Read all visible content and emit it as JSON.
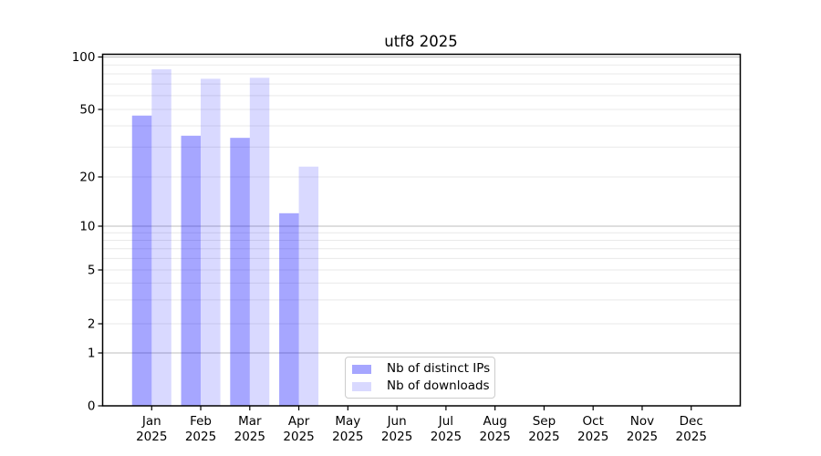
{
  "chart_data": {
    "type": "bar",
    "title": "utf8 2025",
    "year_label": "2025",
    "categories": [
      "Jan",
      "Feb",
      "Mar",
      "Apr",
      "May",
      "Jun",
      "Jul",
      "Aug",
      "Sep",
      "Oct",
      "Nov",
      "Dec"
    ],
    "series": [
      {
        "name": "Nb of distinct IPs",
        "color": "rgba(0,0,255,0.35)",
        "color_on_white": "#a6a6ff",
        "values": [
          46,
          35,
          34,
          12,
          null,
          null,
          null,
          null,
          null,
          null,
          null,
          null
        ]
      },
      {
        "name": "Nb of downloads",
        "color": "rgba(0,0,255,0.15)",
        "color_on_white": "#d9d9ff",
        "values": [
          85,
          75,
          76,
          23,
          null,
          null,
          null,
          null,
          null,
          null,
          null,
          null
        ]
      }
    ],
    "yscale": "symlog",
    "ylim": [
      0,
      104
    ],
    "yticks": [
      0,
      1,
      2,
      5,
      10,
      20,
      50,
      100
    ],
    "gridlines_major": [
      1,
      10,
      100
    ],
    "gridlines_minor": [
      2,
      3,
      4,
      5,
      6,
      7,
      8,
      9,
      20,
      30,
      40,
      50,
      60,
      70,
      80,
      90
    ],
    "grid": "horizontal major+minor",
    "legend_position": "bottom-center",
    "xlabel": "",
    "ylabel": ""
  },
  "colors": {
    "background": "#ffffff",
    "axis": "#000000",
    "grid_major": "#bcbcbc",
    "grid_minor": "#e9e9e9",
    "text": "#000000",
    "legend_border": "#cccccc"
  }
}
